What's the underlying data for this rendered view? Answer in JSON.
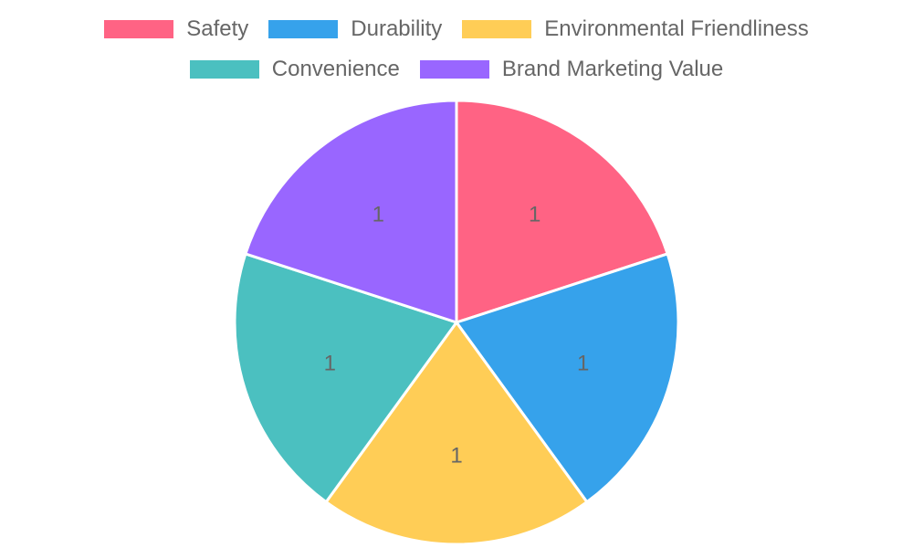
{
  "chart_data": {
    "type": "pie",
    "title": "",
    "categories": [
      "Safety",
      "Durability",
      "Environmental Friendliness",
      "Convenience",
      "Brand Marketing Value"
    ],
    "values": [
      1,
      1,
      1,
      1,
      1
    ],
    "colors": [
      "#ff6384",
      "#36a2eb",
      "#ffcd56",
      "#4bc0c0",
      "#9966ff"
    ],
    "data_labels": [
      "1",
      "1",
      "1",
      "1",
      "1"
    ],
    "legend_position": "top",
    "start_angle": "12 o'clock, clockwise"
  },
  "legend": {
    "items": [
      {
        "label": "Safety",
        "color": "#ff6384"
      },
      {
        "label": "Durability",
        "color": "#36a2eb"
      },
      {
        "label": "Environmental Friendliness",
        "color": "#ffcd56"
      },
      {
        "label": "Convenience",
        "color": "#4bc0c0"
      },
      {
        "label": "Brand Marketing Value",
        "color": "#9966ff"
      }
    ]
  },
  "slices": [
    {
      "label": "1"
    },
    {
      "label": "1"
    },
    {
      "label": "1"
    },
    {
      "label": "1"
    },
    {
      "label": "1"
    }
  ]
}
